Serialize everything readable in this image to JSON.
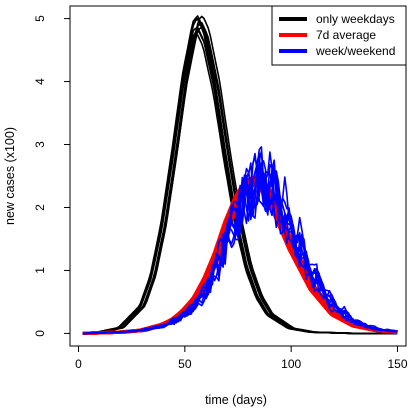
{
  "chart_data": {
    "type": "line",
    "title": "",
    "xlabel": "time (days)",
    "ylabel": "new cases (x100)",
    "xlim": [
      -4,
      154
    ],
    "ylim": [
      -0.2,
      5.2
    ],
    "xticks": [
      0,
      50,
      100,
      150
    ],
    "yticks": [
      0,
      1,
      2,
      3,
      4,
      5
    ],
    "grid": false,
    "legend_position": "top-right",
    "legend": [
      {
        "label": "only weekdays",
        "color": "#000000"
      },
      {
        "label": "7d average",
        "color": "#ff0000"
      },
      {
        "label": "week/weekend",
        "color": "#0000ff"
      }
    ],
    "series": [
      {
        "name": "only weekdays",
        "color": "#000000",
        "description": "ensemble of ~10 simulation runs",
        "x": [
          2,
          10,
          20,
          30,
          35,
          40,
          45,
          50,
          55,
          57,
          60,
          65,
          70,
          75,
          80,
          85,
          90,
          100,
          110,
          120,
          130,
          140,
          150
        ],
        "y": [
          0.0,
          0.02,
          0.09,
          0.43,
          0.9,
          1.7,
          2.8,
          4.0,
          4.85,
          4.92,
          4.7,
          3.9,
          2.8,
          1.8,
          1.05,
          0.58,
          0.3,
          0.08,
          0.02,
          0.01,
          0.0,
          0.0,
          0.0
        ]
      },
      {
        "name": "7d average",
        "color": "#ff0000",
        "description": "ensemble of runs forming a thick band",
        "x": [
          2,
          10,
          20,
          30,
          40,
          45,
          50,
          55,
          60,
          65,
          70,
          75,
          80,
          85,
          90,
          95,
          100,
          110,
          120,
          130,
          140,
          150
        ],
        "y": [
          0.0,
          0.01,
          0.02,
          0.05,
          0.14,
          0.22,
          0.36,
          0.55,
          0.85,
          1.25,
          1.75,
          2.15,
          2.42,
          2.4,
          2.15,
          1.75,
          1.35,
          0.7,
          0.3,
          0.12,
          0.05,
          0.02
        ]
      },
      {
        "name": "week/weekend",
        "color": "#0000ff",
        "description": "ensemble of runs with weekly oscillation",
        "x": [
          2,
          10,
          20,
          30,
          40,
          45,
          50,
          55,
          60,
          65,
          70,
          75,
          80,
          85,
          90,
          95,
          100,
          110,
          120,
          130,
          140,
          150
        ],
        "y": [
          0.0,
          0.01,
          0.02,
          0.05,
          0.12,
          0.2,
          0.3,
          0.45,
          0.7,
          1.05,
          1.5,
          1.95,
          2.3,
          2.45,
          2.35,
          2.05,
          1.65,
          0.95,
          0.45,
          0.18,
          0.07,
          0.03
        ]
      }
    ]
  }
}
